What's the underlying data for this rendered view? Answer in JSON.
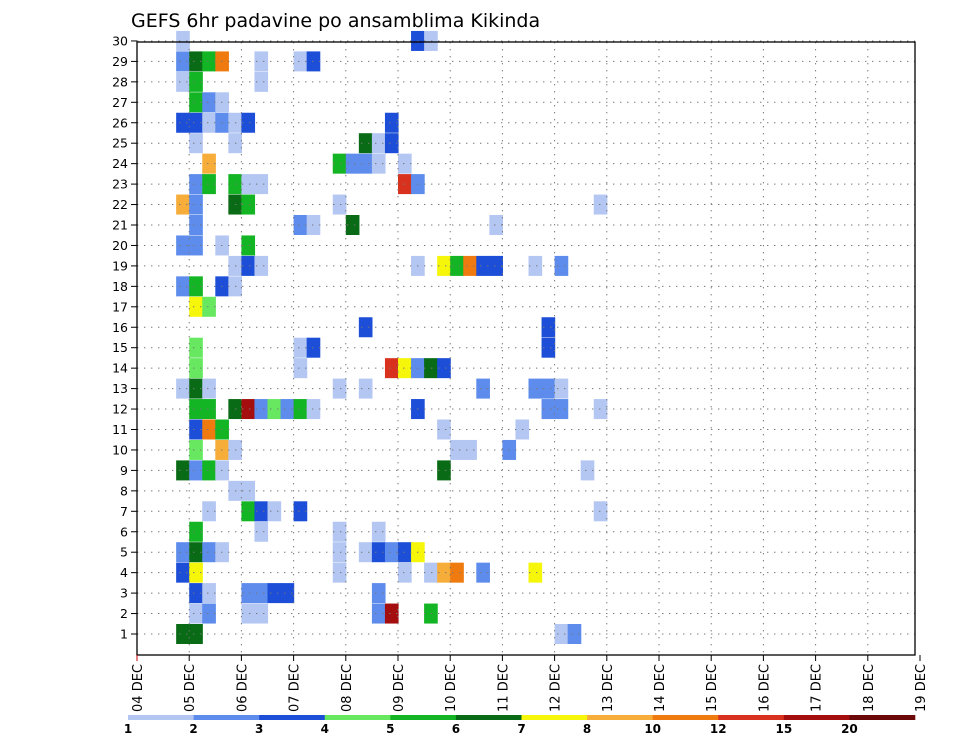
{
  "chart_data": {
    "type": "heatmap",
    "title": "GEFS 6hr padavine po ansamblima Kikinda",
    "x_ticks": [
      "04 DEC",
      "05 DEC",
      "06 DEC",
      "07 DEC",
      "08 DEC",
      "09 DEC",
      "10 DEC",
      "11 DEC",
      "12 DEC",
      "13 DEC",
      "14 DEC",
      "15 DEC",
      "16 DEC",
      "17 DEC",
      "18 DEC",
      "19 DEC"
    ],
    "y_ticks": [
      "1",
      "2",
      "3",
      "4",
      "5",
      "6",
      "7",
      "8",
      "9",
      "10",
      "11",
      "12",
      "13",
      "14",
      "15",
      "16",
      "17",
      "18",
      "19",
      "20",
      "21",
      "22",
      "23",
      "24",
      "25",
      "26",
      "27",
      "28",
      "29",
      "30"
    ],
    "members_range": [
      1,
      30
    ],
    "time_step_hours": 6,
    "grid": "dotted",
    "legend": {
      "placement": "bottom",
      "labels": [
        "1",
        "2",
        "3",
        "4",
        "5",
        "6",
        "7",
        "8",
        "10",
        "12",
        "15",
        "20"
      ],
      "colors": [
        "#b4c7f3",
        "#5d8cec",
        "#1c4ed8",
        "#68e860",
        "#13b524",
        "#0a6b16",
        "#f6f60a",
        "#f6ad3a",
        "#ef7b10",
        "#d8321e",
        "#a40e0e",
        "#6b0808"
      ]
    },
    "cells_description": "each cell = [member, 6-hourly step index from 04 DEC 00Z, precipitation class index]",
    "cells": [
      [
        30,
        3,
        0
      ],
      [
        30,
        21,
        2
      ],
      [
        30,
        22,
        0
      ],
      [
        29,
        3,
        1
      ],
      [
        29,
        4,
        5
      ],
      [
        29,
        5,
        4
      ],
      [
        29,
        6,
        8
      ],
      [
        29,
        9,
        0
      ],
      [
        29,
        12,
        0
      ],
      [
        29,
        13,
        2
      ],
      [
        28,
        3,
        0
      ],
      [
        28,
        4,
        4
      ],
      [
        28,
        9,
        0
      ],
      [
        27,
        4,
        4
      ],
      [
        27,
        5,
        1
      ],
      [
        27,
        6,
        0
      ],
      [
        26,
        3,
        2
      ],
      [
        26,
        4,
        2
      ],
      [
        26,
        5,
        0
      ],
      [
        26,
        6,
        1
      ],
      [
        26,
        7,
        0
      ],
      [
        26,
        8,
        2
      ],
      [
        26,
        19,
        2
      ],
      [
        25,
        4,
        0
      ],
      [
        25,
        7,
        0
      ],
      [
        25,
        17,
        5
      ],
      [
        25,
        18,
        0
      ],
      [
        25,
        19,
        2
      ],
      [
        24,
        5,
        7
      ],
      [
        24,
        15,
        4
      ],
      [
        24,
        16,
        1
      ],
      [
        24,
        17,
        1
      ],
      [
        24,
        18,
        0
      ],
      [
        24,
        20,
        0
      ],
      [
        23,
        4,
        1
      ],
      [
        23,
        5,
        4
      ],
      [
        23,
        7,
        4
      ],
      [
        23,
        8,
        0
      ],
      [
        23,
        9,
        0
      ],
      [
        23,
        20,
        9
      ],
      [
        23,
        21,
        1
      ],
      [
        22,
        3,
        7
      ],
      [
        22,
        4,
        1
      ],
      [
        22,
        7,
        5
      ],
      [
        22,
        8,
        4
      ],
      [
        22,
        15,
        0
      ],
      [
        22,
        35,
        0
      ],
      [
        21,
        4,
        1
      ],
      [
        21,
        12,
        1
      ],
      [
        21,
        13,
        0
      ],
      [
        21,
        16,
        5
      ],
      [
        21,
        27,
        0
      ],
      [
        20,
        3,
        1
      ],
      [
        20,
        4,
        1
      ],
      [
        20,
        6,
        0
      ],
      [
        20,
        8,
        4
      ],
      [
        19,
        7,
        0
      ],
      [
        19,
        8,
        2
      ],
      [
        19,
        9,
        0
      ],
      [
        19,
        21,
        0
      ],
      [
        19,
        23,
        6
      ],
      [
        19,
        24,
        4
      ],
      [
        19,
        25,
        8
      ],
      [
        19,
        26,
        2
      ],
      [
        19,
        27,
        2
      ],
      [
        19,
        30,
        0
      ],
      [
        19,
        32,
        1
      ],
      [
        18,
        3,
        1
      ],
      [
        18,
        4,
        4
      ],
      [
        18,
        6,
        2
      ],
      [
        18,
        7,
        0
      ],
      [
        17,
        4,
        6
      ],
      [
        17,
        5,
        3
      ],
      [
        16,
        17,
        2
      ],
      [
        16,
        31,
        2
      ],
      [
        15,
        4,
        3
      ],
      [
        15,
        12,
        0
      ],
      [
        15,
        13,
        2
      ],
      [
        15,
        31,
        2
      ],
      [
        14,
        4,
        3
      ],
      [
        14,
        12,
        0
      ],
      [
        14,
        19,
        9
      ],
      [
        14,
        20,
        6
      ],
      [
        14,
        21,
        1
      ],
      [
        14,
        22,
        5
      ],
      [
        14,
        23,
        2
      ],
      [
        13,
        3,
        0
      ],
      [
        13,
        4,
        5
      ],
      [
        13,
        5,
        0
      ],
      [
        13,
        15,
        0
      ],
      [
        13,
        17,
        0
      ],
      [
        13,
        26,
        1
      ],
      [
        13,
        30,
        1
      ],
      [
        13,
        31,
        1
      ],
      [
        13,
        32,
        0
      ],
      [
        12,
        4,
        4
      ],
      [
        12,
        5,
        4
      ],
      [
        12,
        7,
        5
      ],
      [
        12,
        8,
        10
      ],
      [
        12,
        9,
        1
      ],
      [
        12,
        10,
        3
      ],
      [
        12,
        11,
        1
      ],
      [
        12,
        12,
        4
      ],
      [
        12,
        13,
        0
      ],
      [
        12,
        21,
        2
      ],
      [
        12,
        31,
        1
      ],
      [
        12,
        32,
        1
      ],
      [
        12,
        35,
        0
      ],
      [
        11,
        4,
        2
      ],
      [
        11,
        5,
        8
      ],
      [
        11,
        6,
        4
      ],
      [
        11,
        23,
        0
      ],
      [
        11,
        29,
        0
      ],
      [
        10,
        4,
        3
      ],
      [
        10,
        6,
        7
      ],
      [
        10,
        7,
        0
      ],
      [
        10,
        24,
        0
      ],
      [
        10,
        25,
        0
      ],
      [
        10,
        28,
        1
      ],
      [
        9,
        3,
        5
      ],
      [
        9,
        4,
        1
      ],
      [
        9,
        5,
        4
      ],
      [
        9,
        6,
        0
      ],
      [
        9,
        23,
        5
      ],
      [
        9,
        34,
        0
      ],
      [
        8,
        7,
        0
      ],
      [
        8,
        8,
        0
      ],
      [
        7,
        5,
        0
      ],
      [
        7,
        8,
        4
      ],
      [
        7,
        9,
        2
      ],
      [
        7,
        10,
        0
      ],
      [
        7,
        12,
        2
      ],
      [
        7,
        35,
        0
      ],
      [
        6,
        4,
        4
      ],
      [
        6,
        9,
        0
      ],
      [
        6,
        15,
        0
      ],
      [
        6,
        18,
        0
      ],
      [
        5,
        3,
        1
      ],
      [
        5,
        4,
        5
      ],
      [
        5,
        5,
        1
      ],
      [
        5,
        6,
        0
      ],
      [
        5,
        15,
        0
      ],
      [
        5,
        17,
        0
      ],
      [
        5,
        18,
        2
      ],
      [
        5,
        19,
        1
      ],
      [
        5,
        20,
        2
      ],
      [
        5,
        21,
        6
      ],
      [
        4,
        3,
        2
      ],
      [
        4,
        4,
        6
      ],
      [
        4,
        15,
        0
      ],
      [
        4,
        20,
        0
      ],
      [
        4,
        22,
        0
      ],
      [
        4,
        23,
        7
      ],
      [
        4,
        24,
        8
      ],
      [
        4,
        26,
        1
      ],
      [
        4,
        30,
        6
      ],
      [
        3,
        4,
        2
      ],
      [
        3,
        5,
        0
      ],
      [
        3,
        8,
        1
      ],
      [
        3,
        9,
        1
      ],
      [
        3,
        10,
        2
      ],
      [
        3,
        11,
        2
      ],
      [
        3,
        18,
        1
      ],
      [
        2,
        4,
        0
      ],
      [
        2,
        5,
        1
      ],
      [
        2,
        8,
        0
      ],
      [
        2,
        9,
        0
      ],
      [
        2,
        18,
        1
      ],
      [
        2,
        19,
        10
      ],
      [
        2,
        22,
        4
      ],
      [
        1,
        3,
        5
      ],
      [
        1,
        4,
        5
      ],
      [
        1,
        32,
        0
      ],
      [
        1,
        33,
        1
      ]
    ]
  }
}
